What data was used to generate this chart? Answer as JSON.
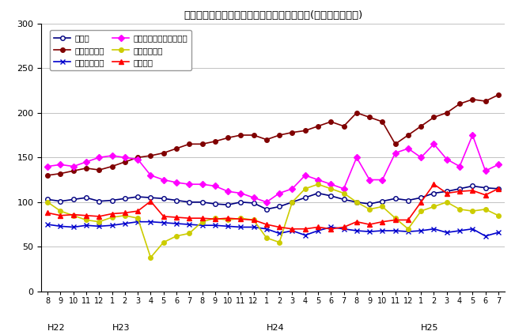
{
  "title": "三重県鉱工業生産及び主要業種別指数の推移(季節調整済指数)",
  "xlabels": [
    "8",
    "9",
    "10",
    "11",
    "12",
    "1",
    "2",
    "3",
    "4",
    "5",
    "6",
    "7",
    "8",
    "9",
    "10",
    "11",
    "12",
    "1",
    "2",
    "3",
    "4",
    "5",
    "6",
    "7",
    "8",
    "9",
    "10",
    "11",
    "12",
    "1",
    "2",
    "3",
    "4",
    "5",
    "6",
    "7"
  ],
  "year_labels": [
    [
      "H22",
      0
    ],
    [
      "H23",
      5
    ],
    [
      "H24",
      17
    ],
    [
      "H25",
      29
    ]
  ],
  "ylim": [
    0,
    300
  ],
  "yticks": [
    0,
    50,
    100,
    150,
    200,
    250,
    300
  ],
  "legend_order": [
    "鉱工業",
    "一般機械工業",
    "電気機械工業",
    "電子部品・デバイス工業",
    "輸送機械工業",
    "化学工業"
  ],
  "series": {
    "鉱工業": {
      "color": "#000080",
      "marker": "o",
      "markerfacecolor": "white",
      "values": [
        103,
        101,
        103,
        105,
        101,
        102,
        104,
        106,
        105,
        104,
        102,
        100,
        100,
        98,
        97,
        100,
        99,
        92,
        95,
        100,
        105,
        110,
        107,
        103,
        100,
        98,
        101,
        104,
        102,
        105,
        110,
        112,
        115,
        118,
        116,
        115
      ]
    },
    "一般機械工業": {
      "color": "#800000",
      "marker": "o",
      "markerfacecolor": "#800000",
      "values": [
        130,
        132,
        135,
        138,
        136,
        140,
        145,
        150,
        152,
        155,
        160,
        165,
        165,
        168,
        172,
        175,
        175,
        170,
        175,
        178,
        180,
        185,
        190,
        185,
        200,
        195,
        190,
        165,
        175,
        185,
        195,
        200,
        210,
        215,
        213,
        220
      ]
    },
    "電気機械工業": {
      "color": "#0000CD",
      "marker": "x",
      "markerfacecolor": "#0000CD",
      "values": [
        75,
        73,
        72,
        74,
        73,
        74,
        76,
        78,
        78,
        77,
        76,
        75,
        74,
        74,
        73,
        72,
        72,
        70,
        65,
        68,
        63,
        68,
        72,
        70,
        68,
        67,
        68,
        68,
        67,
        68,
        70,
        66,
        68,
        70,
        62,
        66
      ]
    },
    "電子部品・デバイス工業": {
      "color": "#FF00FF",
      "marker": "D",
      "markerfacecolor": "#FF00FF",
      "values": [
        140,
        142,
        140,
        145,
        150,
        152,
        150,
        148,
        130,
        125,
        122,
        120,
        120,
        118,
        112,
        110,
        105,
        100,
        110,
        115,
        130,
        125,
        120,
        115,
        150,
        125,
        125,
        155,
        160,
        150,
        165,
        148,
        140,
        175,
        135,
        142
      ]
    },
    "輸送機械工業": {
      "color": "#CCCC00",
      "marker": "o",
      "markerfacecolor": "#CCCC00",
      "values": [
        100,
        90,
        85,
        80,
        78,
        83,
        85,
        82,
        38,
        55,
        62,
        65,
        78,
        82,
        80,
        82,
        80,
        60,
        55,
        100,
        115,
        120,
        115,
        110,
        100,
        92,
        95,
        82,
        70,
        90,
        95,
        100,
        92,
        90,
        92,
        85
      ]
    },
    "化学工業": {
      "color": "#FF0000",
      "marker": "^",
      "markerfacecolor": "#FF0000",
      "values": [
        88,
        85,
        86,
        85,
        84,
        87,
        88,
        90,
        101,
        84,
        83,
        82,
        82,
        81,
        82,
        81,
        80,
        75,
        72,
        70,
        70,
        72,
        70,
        72,
        78,
        75,
        78,
        80,
        80,
        100,
        120,
        110,
        112,
        113,
        108,
        115
      ]
    }
  }
}
